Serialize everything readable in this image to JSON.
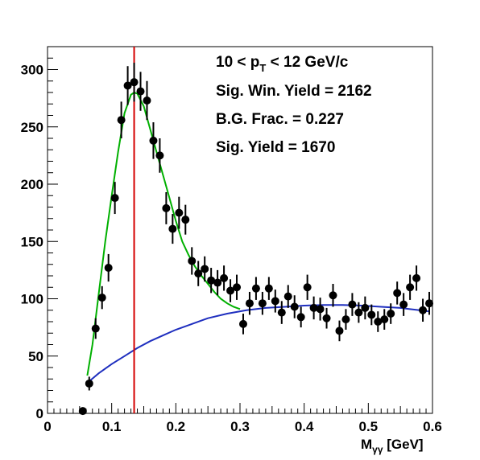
{
  "chart_data": {
    "type": "scatter",
    "title": "",
    "xlabel": "M",
    "xlabel_sub": "γγ",
    "xlabel_unit": " [GeV]",
    "ylabel": "",
    "xlim": [
      0,
      0.6
    ],
    "ylim": [
      0,
      320
    ],
    "x_ticks": [
      0,
      0.1,
      0.2,
      0.3,
      0.4,
      0.5,
      0.6
    ],
    "x_tick_labels": [
      "0",
      "0.1",
      "0.2",
      "0.3",
      "0.4",
      "0.5",
      "0.6"
    ],
    "y_ticks": [
      0,
      50,
      100,
      150,
      200,
      250,
      300
    ],
    "y_tick_labels": [
      "0",
      "50",
      "100",
      "150",
      "200",
      "250",
      "300"
    ],
    "grid": false,
    "annotations": {
      "pt_prefix": "10 < p",
      "pt_sub": "T",
      "pt_suffix": " < 12 GeV/c",
      "sig_win_yield": "Sig. Win. Yield = 2162",
      "bg_frac": "B.G. Frac. = 0.227",
      "sig_yield": "Sig. Yield = 1670"
    },
    "vertical_line": {
      "x": 0.135,
      "color": "#d40000"
    },
    "series": [
      {
        "style": "points",
        "color": "#000000",
        "x": [
          0.055,
          0.065,
          0.075,
          0.085,
          0.095,
          0.105,
          0.115,
          0.125,
          0.135,
          0.145,
          0.155,
          0.165,
          0.175,
          0.185,
          0.195,
          0.205,
          0.215,
          0.225,
          0.235,
          0.245,
          0.255,
          0.265,
          0.275,
          0.285,
          0.295,
          0.305,
          0.315,
          0.325,
          0.335,
          0.345,
          0.355,
          0.365,
          0.375,
          0.385,
          0.395,
          0.405,
          0.415,
          0.425,
          0.435,
          0.445,
          0.455,
          0.465,
          0.475,
          0.485,
          0.495,
          0.505,
          0.515,
          0.525,
          0.535,
          0.545,
          0.555,
          0.565,
          0.575,
          0.585,
          0.595
        ],
        "y": [
          2,
          26,
          74,
          101,
          127,
          188,
          256,
          286,
          289,
          281,
          273,
          238,
          225,
          179,
          161,
          175,
          169,
          133,
          122,
          126,
          116,
          114,
          118,
          107,
          110,
          78,
          96,
          109,
          96,
          109,
          98,
          88,
          102,
          93,
          84,
          110,
          92,
          91,
          83,
          103,
          72,
          82,
          95,
          88,
          92,
          86,
          80,
          82,
          87,
          105,
          95,
          110,
          118,
          90,
          96
        ],
        "err": [
          2,
          6,
          9,
          10,
          12,
          14,
          16,
          17,
          17,
          17,
          17,
          16,
          15,
          14,
          13,
          14,
          13,
          12,
          11,
          11,
          11,
          11,
          11,
          10,
          11,
          9,
          10,
          10,
          10,
          10,
          10,
          10,
          10,
          10,
          9,
          11,
          10,
          10,
          9,
          10,
          9,
          9,
          10,
          9,
          10,
          9,
          9,
          9,
          9,
          10,
          10,
          11,
          11,
          10,
          10
        ]
      },
      {
        "style": "line",
        "color": "#1f2fbf",
        "x": [
          0.065,
          0.08,
          0.1,
          0.12,
          0.14,
          0.16,
          0.18,
          0.2,
          0.22,
          0.25,
          0.28,
          0.31,
          0.34,
          0.37,
          0.4,
          0.43,
          0.46,
          0.49,
          0.52,
          0.55,
          0.58,
          0.595
        ],
        "y": [
          28,
          35,
          43,
          50,
          57,
          63,
          68,
          73,
          77,
          83,
          87,
          90,
          92,
          93,
          94,
          94.5,
          94.5,
          94,
          93,
          92,
          90,
          89
        ]
      },
      {
        "style": "line",
        "color": "#00b000",
        "x": [
          0.062,
          0.07,
          0.08,
          0.09,
          0.1,
          0.11,
          0.12,
          0.13,
          0.135,
          0.14,
          0.15,
          0.16,
          0.17,
          0.18,
          0.19,
          0.2,
          0.21,
          0.22,
          0.23,
          0.24,
          0.25,
          0.26,
          0.27,
          0.28,
          0.29,
          0.3
        ],
        "y": [
          33,
          60,
          105,
          150,
          190,
          228,
          262,
          278,
          280,
          279,
          268,
          248,
          228,
          208,
          188,
          168,
          150,
          138,
          128,
          120,
          113,
          106,
          100,
          96,
          93,
          91
        ]
      }
    ]
  }
}
